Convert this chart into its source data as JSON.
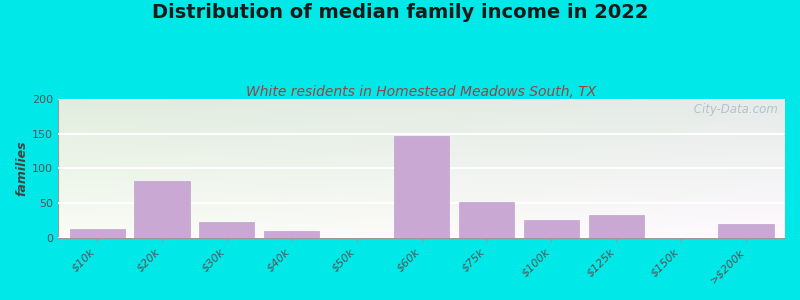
{
  "title": "Distribution of median family income in 2022",
  "subtitle": "White residents in Homestead Meadows South, TX",
  "categories": [
    "$10k",
    "$20k",
    "$30k",
    "$40k",
    "$50k",
    "$60k",
    "$75k",
    "$100k",
    "$125k",
    "$150k",
    ">$200k"
  ],
  "values": [
    13,
    82,
    22,
    9,
    0,
    146,
    51,
    25,
    32,
    0,
    19
  ],
  "bar_color": "#c9a8d4",
  "bar_edge_color": "#b898c8",
  "background_outer": "#00e8e8",
  "title_color": "#1a1a1a",
  "subtitle_color": "#994444",
  "ylabel": "families",
  "ylim": [
    0,
    200
  ],
  "yticks": [
    0,
    50,
    100,
    150,
    200
  ],
  "watermark": " City-Data.com",
  "title_fontsize": 14,
  "subtitle_fontsize": 10,
  "tick_fontsize": 8,
  "ylabel_fontsize": 9,
  "grad_top_left": "#e0ede0",
  "grad_top_right": "#ddeae8",
  "grad_bottom_left": "#eef5ee",
  "grad_bottom_right": "#e8f0ee"
}
